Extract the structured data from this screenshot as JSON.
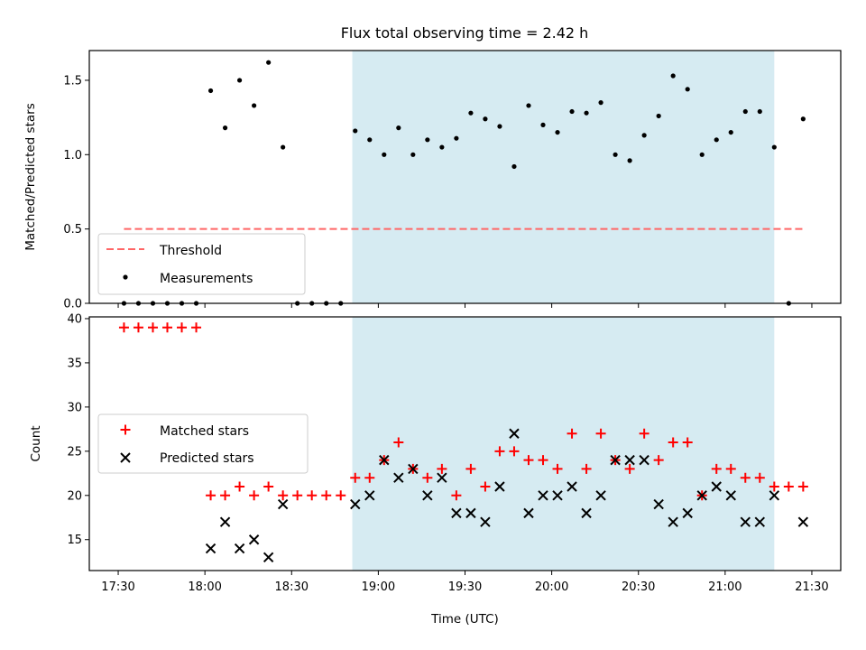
{
  "colors": {
    "shade": "#add8e6",
    "threshold": "#ff6666",
    "measurement": "#000000",
    "matched": "#ff0000",
    "predicted": "#000000"
  },
  "chart_data": [
    {
      "type": "scatter",
      "title": "Flux total observing time = 2.42 h",
      "xlabel": "",
      "ylabel": "Matched/Predicted stars",
      "xlim": [
        "17:20",
        "21:40"
      ],
      "ylim": [
        0,
        1.7
      ],
      "yticks": [
        0.0,
        0.5,
        1.0,
        1.5
      ],
      "ytick_labels": [
        "0.0",
        "0.5",
        "1.0",
        "1.5"
      ],
      "shaded_span": [
        "18:51",
        "21:17"
      ],
      "legend": {
        "placement": "lower left",
        "entries": [
          "Threshold",
          "Measurements"
        ]
      },
      "series": [
        {
          "name": "Threshold",
          "kind": "line",
          "style": "dashed",
          "x": [
            "17:32",
            "21:27"
          ],
          "values": [
            0.5,
            0.5
          ]
        },
        {
          "name": "Measurements",
          "kind": "scatter",
          "x": [
            "17:32",
            "17:37",
            "17:42",
            "17:47",
            "17:52",
            "17:57",
            "18:02",
            "18:07",
            "18:12",
            "18:17",
            "18:22",
            "18:27",
            "18:32",
            "18:37",
            "18:42",
            "18:47",
            "18:52",
            "18:57",
            "19:02",
            "19:07",
            "19:12",
            "19:17",
            "19:22",
            "19:27",
            "19:32",
            "19:37",
            "19:42",
            "19:47",
            "19:52",
            "19:57",
            "20:02",
            "20:07",
            "20:12",
            "20:17",
            "20:22",
            "20:27",
            "20:32",
            "20:37",
            "20:42",
            "20:47",
            "20:52",
            "20:57",
            "21:02",
            "21:07",
            "21:12",
            "21:17",
            "21:22",
            "21:27"
          ],
          "values": [
            0.0,
            0.0,
            0.0,
            0.0,
            0.0,
            0.0,
            1.43,
            1.18,
            1.5,
            1.33,
            1.62,
            1.05,
            0.0,
            0.0,
            0.0,
            0.0,
            1.16,
            1.1,
            1.0,
            1.18,
            1.0,
            1.1,
            1.05,
            1.11,
            1.28,
            1.24,
            1.19,
            0.92,
            1.33,
            1.2,
            1.15,
            1.29,
            1.28,
            1.35,
            1.0,
            0.96,
            1.13,
            1.26,
            1.53,
            1.44,
            1.0,
            1.1,
            1.15,
            1.29,
            1.29,
            1.05,
            0.0,
            1.24
          ]
        }
      ]
    },
    {
      "type": "scatter",
      "title": "",
      "xlabel": "Time (UTC)",
      "ylabel": "Count",
      "xlim": [
        "17:20",
        "21:40"
      ],
      "ylim": [
        11.5,
        40.2
      ],
      "yticks": [
        15,
        20,
        25,
        30,
        35,
        40
      ],
      "ytick_labels": [
        "15",
        "20",
        "25",
        "30",
        "35",
        "40"
      ],
      "xticks": [
        "17:30",
        "18:00",
        "18:30",
        "19:00",
        "19:30",
        "20:00",
        "20:30",
        "21:00",
        "21:30"
      ],
      "shaded_span": [
        "18:51",
        "21:17"
      ],
      "legend": {
        "placement": "center left",
        "entries": [
          "Matched stars",
          "Predicted stars"
        ]
      },
      "series": [
        {
          "name": "Matched stars",
          "marker": "+",
          "x": [
            "17:32",
            "17:37",
            "17:42",
            "17:47",
            "17:52",
            "17:57",
            "18:02",
            "18:07",
            "18:12",
            "18:17",
            "18:22",
            "18:27",
            "18:32",
            "18:37",
            "18:42",
            "18:47",
            "18:52",
            "18:57",
            "19:02",
            "19:07",
            "19:12",
            "19:17",
            "19:22",
            "19:27",
            "19:32",
            "19:37",
            "19:42",
            "19:47",
            "19:52",
            "19:57",
            "20:02",
            "20:07",
            "20:12",
            "20:17",
            "20:22",
            "20:27",
            "20:32",
            "20:37",
            "20:42",
            "20:47",
            "20:52",
            "20:57",
            "21:02",
            "21:07",
            "21:12",
            "21:17",
            "21:22",
            "21:27"
          ],
          "values": [
            39,
            39,
            39,
            39,
            39,
            39,
            20,
            20,
            21,
            20,
            21,
            20,
            20,
            20,
            20,
            20,
            22,
            22,
            24,
            26,
            23,
            22,
            23,
            20,
            23,
            21,
            25,
            25,
            24,
            24,
            23,
            27,
            23,
            27,
            24,
            23,
            27,
            24,
            26,
            26,
            20,
            23,
            23,
            22,
            22,
            21,
            21,
            21
          ]
        },
        {
          "name": "Predicted stars",
          "marker": "x",
          "x": [
            "18:02",
            "18:07",
            "18:12",
            "18:17",
            "18:22",
            "18:27",
            "18:52",
            "18:57",
            "19:02",
            "19:07",
            "19:12",
            "19:17",
            "19:22",
            "19:27",
            "19:32",
            "19:37",
            "19:42",
            "19:47",
            "19:52",
            "19:57",
            "20:02",
            "20:07",
            "20:12",
            "20:17",
            "20:22",
            "20:27",
            "20:32",
            "20:37",
            "20:42",
            "20:47",
            "20:52",
            "20:57",
            "21:02",
            "21:07",
            "21:12",
            "21:17",
            "21:27"
          ],
          "values": [
            14,
            17,
            14,
            15,
            13,
            19,
            19,
            20,
            24,
            22,
            23,
            20,
            22,
            18,
            18,
            17,
            21,
            27,
            18,
            20,
            20,
            21,
            18,
            20,
            24,
            24,
            24,
            19,
            17,
            18,
            20,
            21,
            20,
            17,
            17,
            20,
            17
          ]
        }
      ]
    }
  ]
}
